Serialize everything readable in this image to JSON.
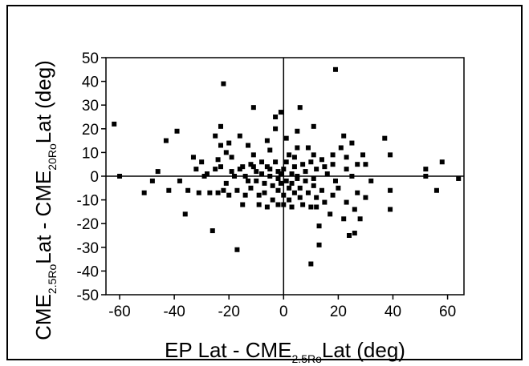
{
  "chart_data": {
    "type": "scatter",
    "title": "",
    "xlabel": {
      "main1": "EP Lat - CME",
      "sub": "2.5Ro",
      "main2": "Lat (deg)"
    },
    "ylabel": {
      "main1": "CME",
      "sub1": "2.5Ro",
      "main2": "Lat - CME",
      "sub2": "20Ro",
      "main3": "Lat (deg)"
    },
    "xlim": [
      -65,
      66
    ],
    "ylim": [
      -50,
      50
    ],
    "xticks": [
      -60,
      -40,
      -20,
      0,
      20,
      40,
      60
    ],
    "yticks": [
      50,
      40,
      30,
      20,
      10,
      0,
      -10,
      -20,
      -30,
      -40,
      -50
    ],
    "grid": false,
    "marker": "square",
    "marker_color": "#000000",
    "points": [
      [
        -62,
        22
      ],
      [
        -60,
        0
      ],
      [
        -51,
        -7
      ],
      [
        -48,
        -2
      ],
      [
        -46,
        2
      ],
      [
        -43,
        15
      ],
      [
        -42,
        -6
      ],
      [
        -39,
        19
      ],
      [
        -38,
        -2
      ],
      [
        -36,
        -16
      ],
      [
        -35,
        -6
      ],
      [
        -33,
        8
      ],
      [
        -32,
        3
      ],
      [
        -31,
        -7
      ],
      [
        -30,
        6
      ],
      [
        -29,
        0
      ],
      [
        -28,
        1
      ],
      [
        -27,
        -7
      ],
      [
        -26,
        -23
      ],
      [
        -25,
        17
      ],
      [
        -25,
        3
      ],
      [
        -24,
        7
      ],
      [
        -24,
        -7
      ],
      [
        -23,
        21
      ],
      [
        -23,
        13
      ],
      [
        -23,
        4
      ],
      [
        -22,
        39
      ],
      [
        -22,
        -6
      ],
      [
        -21,
        10
      ],
      [
        -21,
        -3
      ],
      [
        -20,
        14
      ],
      [
        -20,
        -8
      ],
      [
        -19,
        8
      ],
      [
        -19,
        2
      ],
      [
        -18,
        0
      ],
      [
        -17,
        -6
      ],
      [
        -17,
        -31
      ],
      [
        -16,
        17
      ],
      [
        -16,
        3
      ],
      [
        -15,
        4
      ],
      [
        -15,
        -12
      ],
      [
        -14,
        0
      ],
      [
        -14,
        -8
      ],
      [
        -13,
        13
      ],
      [
        -13,
        -2
      ],
      [
        -12,
        5
      ],
      [
        -12,
        -5
      ],
      [
        -11,
        29
      ],
      [
        -11,
        9
      ],
      [
        -11,
        4
      ],
      [
        -10,
        2
      ],
      [
        -10,
        -2
      ],
      [
        -9,
        -8
      ],
      [
        -9,
        -12
      ],
      [
        -8,
        6
      ],
      [
        -8,
        1
      ],
      [
        -7,
        -3
      ],
      [
        -7,
        -7
      ],
      [
        -6,
        15
      ],
      [
        -6,
        4
      ],
      [
        -6,
        -13
      ],
      [
        -5,
        11
      ],
      [
        -5,
        3
      ],
      [
        -5,
        0
      ],
      [
        -4,
        -4
      ],
      [
        -4,
        -10
      ],
      [
        -3,
        25
      ],
      [
        -3,
        20
      ],
      [
        -3,
        6
      ],
      [
        -2,
        2
      ],
      [
        -2,
        -1
      ],
      [
        -2,
        -6
      ],
      [
        -2,
        -12
      ],
      [
        -1,
        27
      ],
      [
        -1,
        1
      ],
      [
        -1,
        -3
      ],
      [
        0,
        3
      ],
      [
        0,
        -8
      ],
      [
        0,
        -12
      ],
      [
        1,
        16
      ],
      [
        1,
        6
      ],
      [
        1,
        -2
      ],
      [
        2,
        9
      ],
      [
        2,
        -5
      ],
      [
        2,
        -10
      ],
      [
        3,
        1
      ],
      [
        3,
        -3
      ],
      [
        3,
        -13
      ],
      [
        4,
        8
      ],
      [
        4,
        4
      ],
      [
        4,
        -7
      ],
      [
        5,
        19
      ],
      [
        5,
        12
      ],
      [
        5,
        0
      ],
      [
        5,
        -1
      ],
      [
        6,
        29
      ],
      [
        6,
        -5
      ],
      [
        6,
        -9
      ],
      [
        7,
        5
      ],
      [
        7,
        -12
      ],
      [
        8,
        2
      ],
      [
        8,
        -2
      ],
      [
        9,
        12
      ],
      [
        9,
        -7
      ],
      [
        10,
        6
      ],
      [
        10,
        -13
      ],
      [
        10,
        -37
      ],
      [
        11,
        21
      ],
      [
        11,
        9
      ],
      [
        11,
        -1
      ],
      [
        11,
        -4
      ],
      [
        12,
        3
      ],
      [
        12,
        -9
      ],
      [
        12,
        -13
      ],
      [
        13,
        -21
      ],
      [
        13,
        -29
      ],
      [
        14,
        7
      ],
      [
        14,
        -6
      ],
      [
        15,
        4
      ],
      [
        15,
        -11
      ],
      [
        16,
        1
      ],
      [
        17,
        -16
      ],
      [
        18,
        9
      ],
      [
        18,
        5
      ],
      [
        18,
        -8
      ],
      [
        19,
        45
      ],
      [
        19,
        -2
      ],
      [
        20,
        -5
      ],
      [
        21,
        12
      ],
      [
        22,
        17
      ],
      [
        22,
        -18
      ],
      [
        23,
        8
      ],
      [
        23,
        3
      ],
      [
        23,
        -11
      ],
      [
        24,
        -25
      ],
      [
        25,
        14
      ],
      [
        25,
        0
      ],
      [
        26,
        -14
      ],
      [
        26,
        -24
      ],
      [
        27,
        5
      ],
      [
        27,
        -7
      ],
      [
        28,
        -18
      ],
      [
        29,
        9
      ],
      [
        30,
        5
      ],
      [
        30,
        -9
      ],
      [
        32,
        -2
      ],
      [
        37,
        16
      ],
      [
        39,
        9
      ],
      [
        39,
        -6
      ],
      [
        39,
        -14
      ],
      [
        52,
        3
      ],
      [
        52,
        0
      ],
      [
        56,
        -6
      ],
      [
        58,
        6
      ],
      [
        64,
        -1
      ]
    ]
  }
}
